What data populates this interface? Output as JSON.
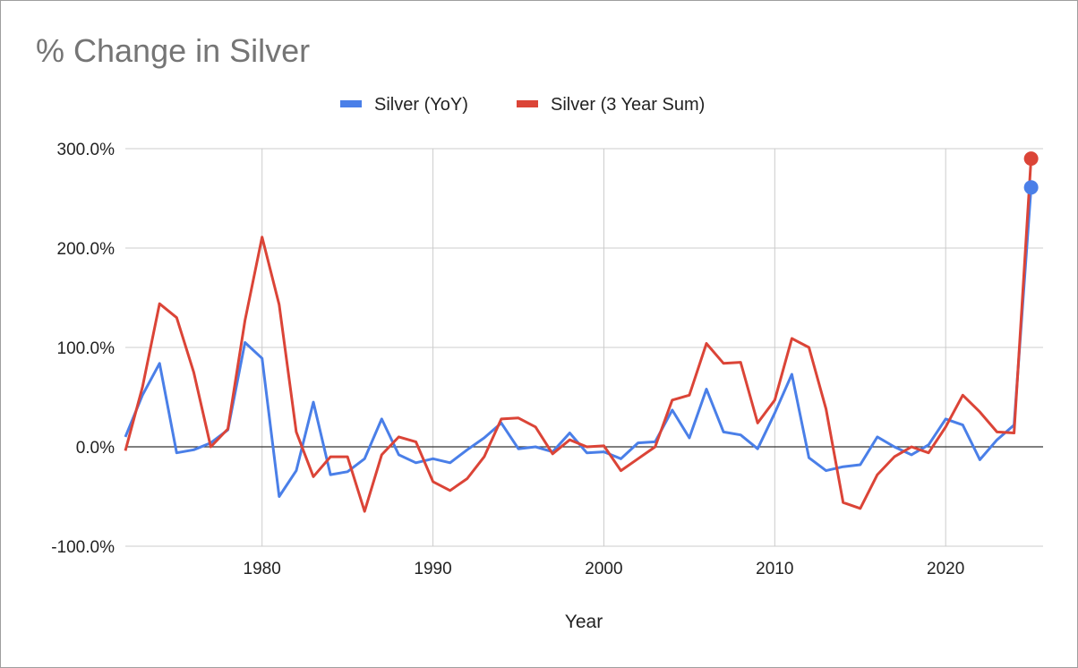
{
  "chart_data": {
    "type": "line",
    "title": "% Change in Silver",
    "xlabel": "Year",
    "ylabel": "",
    "x_tick_labels": [
      "1980",
      "1990",
      "2000",
      "2010",
      "2020"
    ],
    "y_tick_labels": [
      "-100.0%",
      "0.0%",
      "100.0%",
      "200.0%",
      "300.0%"
    ],
    "xlim": [
      1972,
      2025.7
    ],
    "ylim": [
      -100,
      300
    ],
    "grid": true,
    "legend_position": "top",
    "x": [
      1972,
      1973,
      1974,
      1975,
      1976,
      1977,
      1978,
      1979,
      1980,
      1981,
      1982,
      1983,
      1984,
      1985,
      1986,
      1987,
      1988,
      1989,
      1990,
      1991,
      1992,
      1993,
      1994,
      1995,
      1996,
      1997,
      1998,
      1999,
      2000,
      2001,
      2002,
      2003,
      2004,
      2005,
      2006,
      2007,
      2008,
      2009,
      2010,
      2011,
      2012,
      2013,
      2014,
      2015,
      2016,
      2017,
      2018,
      2019,
      2020,
      2021,
      2022,
      2023,
      2024,
      2025
    ],
    "series": [
      {
        "name": "Silver (YoY)",
        "color": "#4a7fe8",
        "values": [
          10,
          52,
          84,
          -6,
          -3,
          4,
          17,
          105,
          89,
          -50,
          -24,
          45,
          -28,
          -25,
          -12,
          28,
          -8,
          -16,
          -12,
          -16,
          -3,
          9,
          24,
          -2,
          0,
          -5,
          14,
          -6,
          -5,
          -12,
          4,
          5,
          37,
          9,
          58,
          15,
          12,
          -2,
          34,
          73,
          -11,
          -24,
          -20,
          -18,
          10,
          0,
          -8,
          2,
          28,
          22,
          -13,
          7,
          22,
          261
        ]
      },
      {
        "name": "Silver (3 Year Sum)",
        "color": "#db4437",
        "values": [
          -4,
          60,
          144,
          130,
          75,
          0,
          18,
          127,
          211,
          143,
          15,
          -30,
          -10,
          -10,
          -65,
          -8,
          10,
          5,
          -35,
          -44,
          -32,
          -10,
          28,
          29,
          20,
          -7,
          7,
          0,
          1,
          -24,
          -12,
          0,
          47,
          52,
          104,
          84,
          85,
          24,
          47,
          109,
          100,
          38,
          -56,
          -62,
          -28,
          -10,
          0,
          -6,
          20,
          52,
          35,
          15,
          14,
          290
        ]
      }
    ]
  }
}
